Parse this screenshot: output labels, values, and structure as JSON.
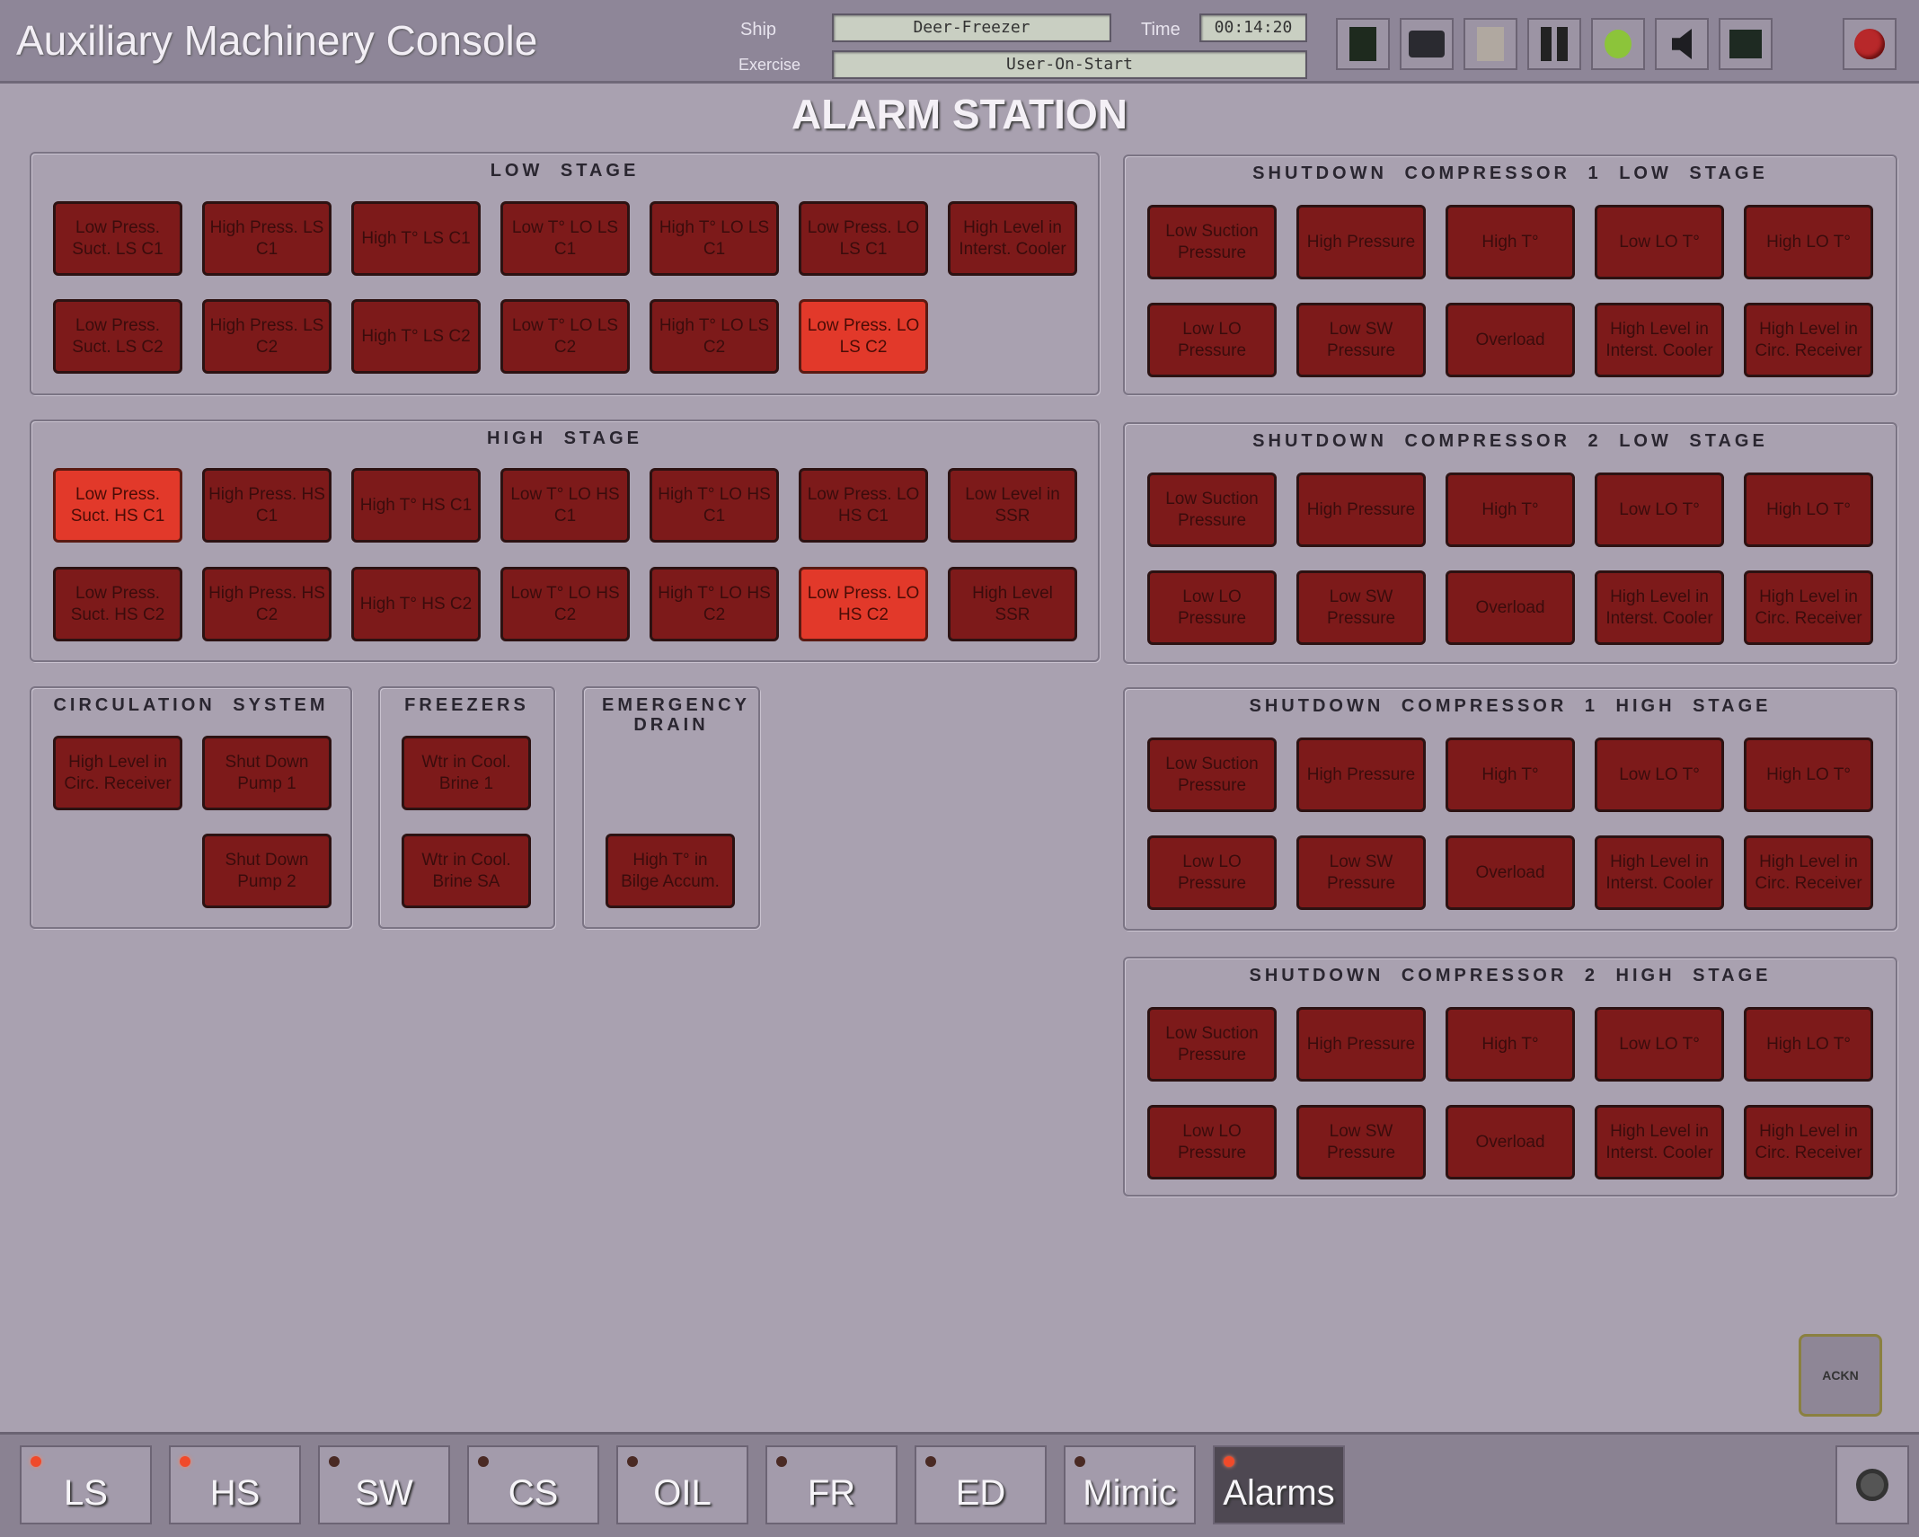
{
  "header": {
    "title": "Auxiliary Machinery Console",
    "ship_label": "Ship",
    "ship_value": "Deer-Freezer",
    "time_label": "Time",
    "time_value": "00:14:20",
    "exercise_label": "Exercise",
    "exercise_value": "User-On-Start",
    "toolbar_icons": [
      "monitor-dark-icon",
      "display-icon",
      "blank-page-icon",
      "pause-icon",
      "green-apple-icon",
      "speaker-icon",
      "screen-icon"
    ],
    "record_icon": "red-record-icon"
  },
  "screen_title": "ALARM STATION",
  "panels": {
    "low_stage": {
      "title": "LOW STAGE",
      "buttons": [
        {
          "label": "Low Press. Suct. LS C1",
          "active": false
        },
        {
          "label": "High Press. LS C1",
          "active": false
        },
        {
          "label": "High T° LS C1",
          "active": false
        },
        {
          "label": "Low T° LO LS C1",
          "active": false
        },
        {
          "label": "High T° LO LS C1",
          "active": false
        },
        {
          "label": "Low Press. LO LS C1",
          "active": false
        },
        {
          "label": "High Level in Interst. Cooler",
          "active": false
        },
        {
          "label": "Low Press. Suct. LS C2",
          "active": false
        },
        {
          "label": "High Press. LS C2",
          "active": false
        },
        {
          "label": "High T° LS C2",
          "active": false
        },
        {
          "label": "Low T° LO LS C2",
          "active": false
        },
        {
          "label": "High T° LO LS C2",
          "active": false
        },
        {
          "label": "Low Press. LO LS C2",
          "active": true
        }
      ]
    },
    "high_stage": {
      "title": "HIGH STAGE",
      "buttons": [
        {
          "label": "Low Press. Suct. HS C1",
          "active": true
        },
        {
          "label": "High Press. HS C1",
          "active": false
        },
        {
          "label": "High T° HS C1",
          "active": false
        },
        {
          "label": "Low T° LO HS C1",
          "active": false
        },
        {
          "label": "High T° LO HS C1",
          "active": false
        },
        {
          "label": "Low Press. LO HS C1",
          "active": false
        },
        {
          "label": "Low Level in SSR",
          "active": false
        },
        {
          "label": "Low Press. Suct. HS C2",
          "active": false
        },
        {
          "label": "High Press. HS C2",
          "active": false
        },
        {
          "label": "High T° HS C2",
          "active": false
        },
        {
          "label": "Low T° LO HS C2",
          "active": false
        },
        {
          "label": "High T° LO HS C2",
          "active": false
        },
        {
          "label": "Low Press. LO HS C2",
          "active": true
        },
        {
          "label": "High Level SSR",
          "active": false
        }
      ]
    },
    "sd_c1_ls": {
      "title": "SHUTDOWN COMPRESSOR 1 LOW STAGE",
      "buttons": [
        {
          "label": "Low Suction Pressure",
          "active": false
        },
        {
          "label": "High Pressure",
          "active": false
        },
        {
          "label": "High T°",
          "active": false
        },
        {
          "label": "Low LO T°",
          "active": false
        },
        {
          "label": "High LO T°",
          "active": false
        },
        {
          "label": "Low LO Pressure",
          "active": false
        },
        {
          "label": "Low SW Pressure",
          "active": false
        },
        {
          "label": "Overload",
          "active": false
        },
        {
          "label": "High Level in Interst. Cooler",
          "active": false
        },
        {
          "label": "High Level in Circ. Receiver",
          "active": false
        }
      ]
    },
    "sd_c2_ls": {
      "title": "SHUTDOWN COMPRESSOR 2 LOW STAGE",
      "buttons": [
        {
          "label": "Low Suction Pressure",
          "active": false
        },
        {
          "label": "High Pressure",
          "active": false
        },
        {
          "label": "High T°",
          "active": false
        },
        {
          "label": "Low LO T°",
          "active": false
        },
        {
          "label": "High LO T°",
          "active": false
        },
        {
          "label": "Low LO Pressure",
          "active": false
        },
        {
          "label": "Low SW Pressure",
          "active": false
        },
        {
          "label": "Overload",
          "active": false
        },
        {
          "label": "High Level in Interst. Cooler",
          "active": false
        },
        {
          "label": "High Level in Circ. Receiver",
          "active": false
        }
      ]
    },
    "sd_c1_hs": {
      "title": "SHUTDOWN COMPRESSOR 1 HIGH STAGE",
      "buttons": [
        {
          "label": "Low Suction Pressure",
          "active": false
        },
        {
          "label": "High Pressure",
          "active": false
        },
        {
          "label": "High T°",
          "active": false
        },
        {
          "label": "Low LO T°",
          "active": false
        },
        {
          "label": "High LO T°",
          "active": false
        },
        {
          "label": "Low LO Pressure",
          "active": false
        },
        {
          "label": "Low SW Pressure",
          "active": false
        },
        {
          "label": "Overload",
          "active": false
        },
        {
          "label": "High Level in Interst. Cooler",
          "active": false
        },
        {
          "label": "High Level in Circ. Receiver",
          "active": false
        }
      ]
    },
    "sd_c2_hs": {
      "title": "SHUTDOWN COMPRESSOR 2 HIGH STAGE",
      "buttons": [
        {
          "label": "Low Suction Pressure",
          "active": false
        },
        {
          "label": "High Pressure",
          "active": false
        },
        {
          "label": "High T°",
          "active": false
        },
        {
          "label": "Low LO T°",
          "active": false
        },
        {
          "label": "High LO T°",
          "active": false
        },
        {
          "label": "Low LO Pressure",
          "active": false
        },
        {
          "label": "Low SW Pressure",
          "active": false
        },
        {
          "label": "Overload",
          "active": false
        },
        {
          "label": "High Level in Interst. Cooler",
          "active": false
        },
        {
          "label": "High Level in Circ. Receiver",
          "active": false
        }
      ]
    },
    "circulation": {
      "title": "CIRCULATION SYSTEM",
      "buttons": [
        {
          "label": "High Level in Circ. Receiver",
          "active": false
        },
        {
          "label": "Shut Down Pump 1",
          "active": false
        },
        {
          "label": "Shut Down Pump 2",
          "active": false
        }
      ]
    },
    "freezers": {
      "title": "FREEZERS",
      "buttons": [
        {
          "label": "Wtr in Cool. Brine 1",
          "active": false
        },
        {
          "label": "Wtr in Cool. Brine SA",
          "active": false
        }
      ]
    },
    "emergency_drain": {
      "title": "EMERGENCY DRAIN",
      "buttons": [
        {
          "label": "High T° in Bilge Accum.",
          "active": false
        }
      ]
    }
  },
  "ackn_label": "ACKN",
  "tabs": [
    {
      "label": "LS",
      "alarm": true,
      "selected": false
    },
    {
      "label": "HS",
      "alarm": true,
      "selected": false
    },
    {
      "label": "SW",
      "alarm": false,
      "selected": false
    },
    {
      "label": "CS",
      "alarm": false,
      "selected": false
    },
    {
      "label": "OIL",
      "alarm": false,
      "selected": false
    },
    {
      "label": "FR",
      "alarm": false,
      "selected": false
    },
    {
      "label": "ED",
      "alarm": false,
      "selected": false
    },
    {
      "label": "Mimic",
      "alarm": false,
      "selected": false
    },
    {
      "label": "Alarms",
      "alarm": true,
      "selected": true
    }
  ],
  "camera_icon": "camera-icon",
  "colors": {
    "alarm_inactive": "#7d1a1a",
    "alarm_active": "#e2392a",
    "background": "#a9a1b0"
  }
}
